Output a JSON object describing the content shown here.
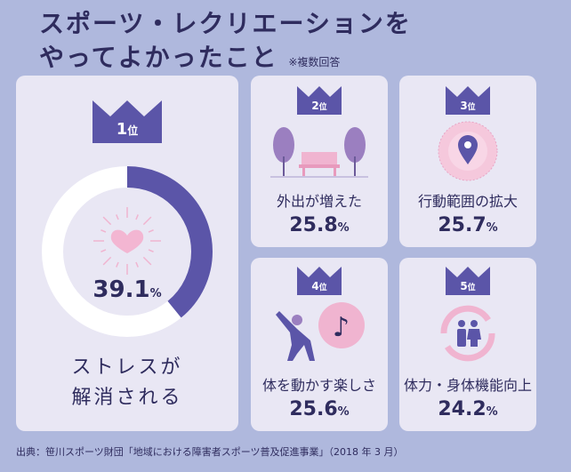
{
  "title": {
    "line1": "スポーツ・レクリエーションを",
    "line2": "やってよかったこと",
    "note": "※複数回答"
  },
  "colors": {
    "bg": "#afb8dd",
    "card": "#e9e7f4",
    "accent": "#5b55a8",
    "dark": "#2f2c5e",
    "pink": "#f0b4d0"
  },
  "chart_data": {
    "type": "table",
    "title": "スポーツ・レクリエーションをやってよかったこと",
    "rows": [
      {
        "rank": "1位",
        "label": "ストレスが解消される",
        "value": 39.1,
        "icon": "heart-icon"
      },
      {
        "rank": "2位",
        "label": "外出が増えた",
        "value": 25.8,
        "icon": "park-bench-icon"
      },
      {
        "rank": "3位",
        "label": "行動範囲の拡大",
        "value": 25.7,
        "icon": "location-pin-icon"
      },
      {
        "rank": "4位",
        "label": "体を動かす楽しさ",
        "value": 25.6,
        "icon": "stretching-music-icon"
      },
      {
        "rank": "5位",
        "label": "体力・身体機能向上",
        "value": 24.2,
        "icon": "people-cycle-icon"
      }
    ],
    "unit": "%"
  },
  "display": {
    "v1": "39.1",
    "v2": "25.8",
    "v3": "25.7",
    "v4": "25.6",
    "v5": "24.2",
    "pct": "%",
    "l1a": "ストレスが",
    "l1b": "解消される",
    "n1": "1",
    "n2": "2",
    "n3": "3",
    "n4": "4",
    "n5": "5",
    "i": "位"
  },
  "source": "出典：笹川スポーツ財団「地域における障害者スポーツ普及促進事業」（2018 年 3 月）"
}
